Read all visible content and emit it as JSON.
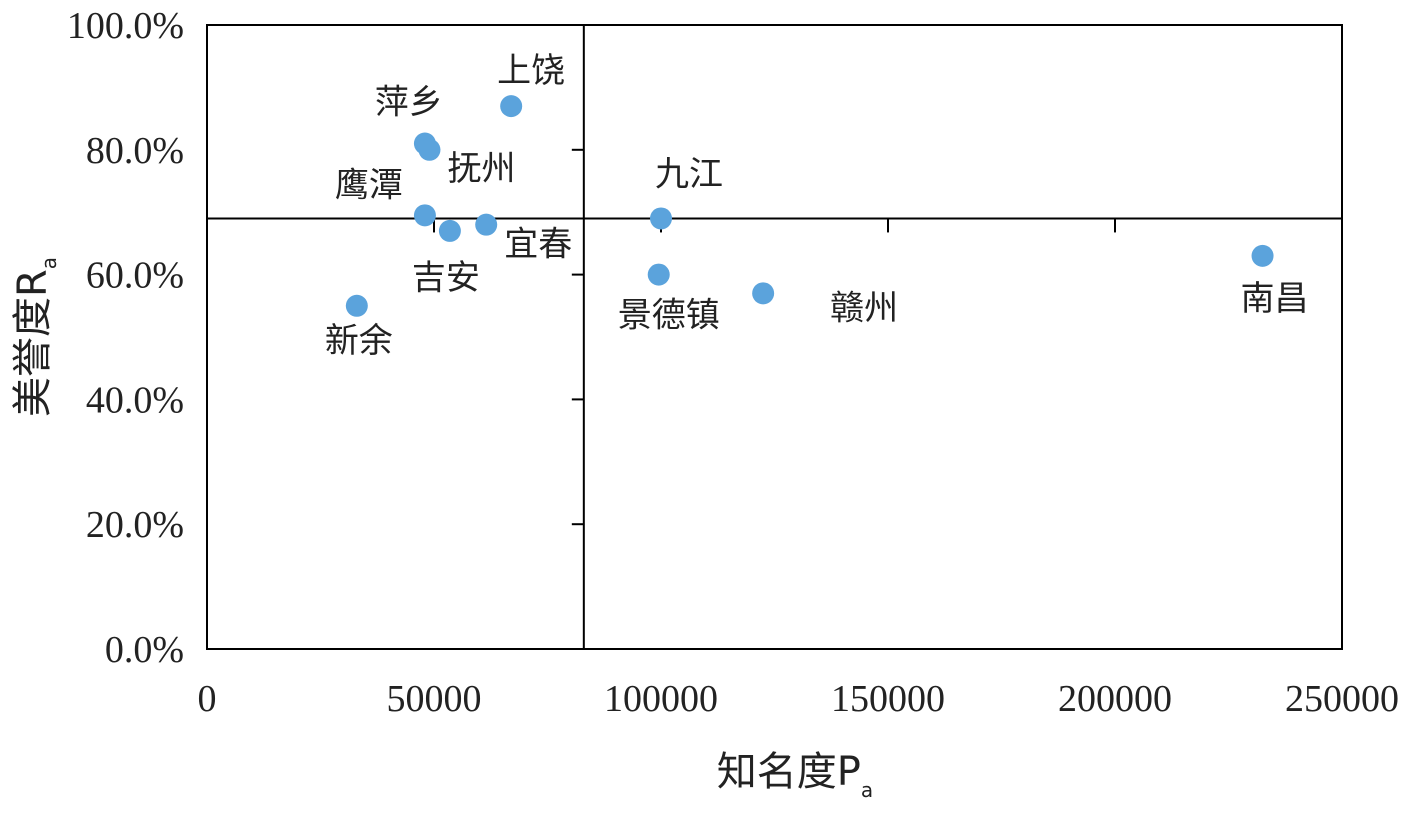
{
  "chart_data": {
    "type": "scatter",
    "xlabel_main": "知名度P",
    "xlabel_sub": "a",
    "ylabel_main": "美誉度R",
    "ylabel_sub": "a",
    "xlim": [
      0,
      250000
    ],
    "ylim": [
      0,
      1.0
    ],
    "x_ticks": [
      "0",
      "50000",
      "100000",
      "150000",
      "200000",
      "250000"
    ],
    "y_ticks": [
      "0.0%",
      "20.0%",
      "40.0%",
      "60.0%",
      "80.0%",
      "100.0%"
    ],
    "reference_lines": {
      "x": 83000,
      "y": 0.69
    },
    "grid": false,
    "marker_color": "#5BA3DC",
    "points": [
      {
        "name": "上饶",
        "x": 67000,
        "y": 0.87
      },
      {
        "name": "萍乡",
        "x": 48000,
        "y": 0.81
      },
      {
        "name": "抚州",
        "x": 49000,
        "y": 0.8
      },
      {
        "name": "鹰潭",
        "x": 48000,
        "y": 0.695
      },
      {
        "name": "宜春",
        "x": 61500,
        "y": 0.68
      },
      {
        "name": "吉安",
        "x": 53500,
        "y": 0.67
      },
      {
        "name": "新余",
        "x": 33000,
        "y": 0.55
      },
      {
        "name": "九江",
        "x": 100000,
        "y": 0.69
      },
      {
        "name": "景德镇",
        "x": 99500,
        "y": 0.6
      },
      {
        "name": "赣州",
        "x": 122500,
        "y": 0.57
      },
      {
        "name": "南昌",
        "x": 232500,
        "y": 0.63
      }
    ]
  }
}
